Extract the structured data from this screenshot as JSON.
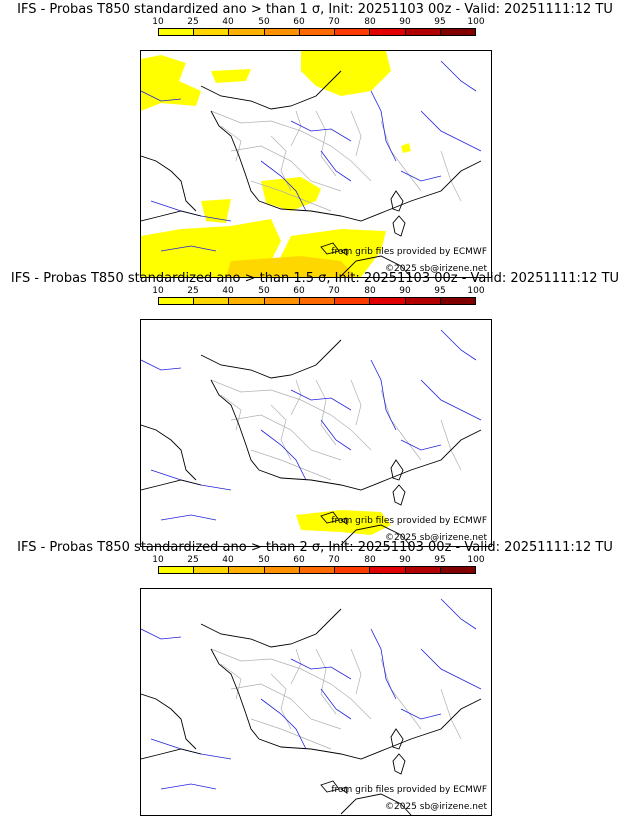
{
  "colors": {
    "scale": [
      "#ffff00",
      "#ffd700",
      "#ffb000",
      "#ff9000",
      "#ff6a00",
      "#ff3a00",
      "#e00000",
      "#b00000",
      "#800000",
      "#500000"
    ],
    "map_background": "#ffffff",
    "rivers": "#2222dd",
    "borders": "#b0b0b0",
    "coast": "#000000"
  },
  "scale_labels": [
    "10",
    "25",
    "40",
    "50",
    "60",
    "70",
    "80",
    "90",
    "95",
    "100"
  ],
  "panels": [
    {
      "title": "IFS - Probas T850  standardized ano > than 1 σ, Init: 20251103 00z - Valid: 20251111:12 TU",
      "credit_source": "from grib files provided by ECMWF",
      "credit_copyright": "©2025 sb@irizene.net"
    },
    {
      "title": "IFS - Probas T850  standardized ano > than 1.5 σ, Init: 20251103 00z - Valid: 20251111:12 TU",
      "credit_source": "from grib files provided by ECMWF",
      "credit_copyright": "©2025 sb@irizene.net"
    },
    {
      "title": "IFS - Probas T850  standardized ano > than 2 σ, Init: 20251103 00z - Valid: 20251111:12 TU",
      "credit_source": "from grib files provided by ECMWF",
      "credit_copyright": "©2025 sb@irizene.net"
    }
  ]
}
